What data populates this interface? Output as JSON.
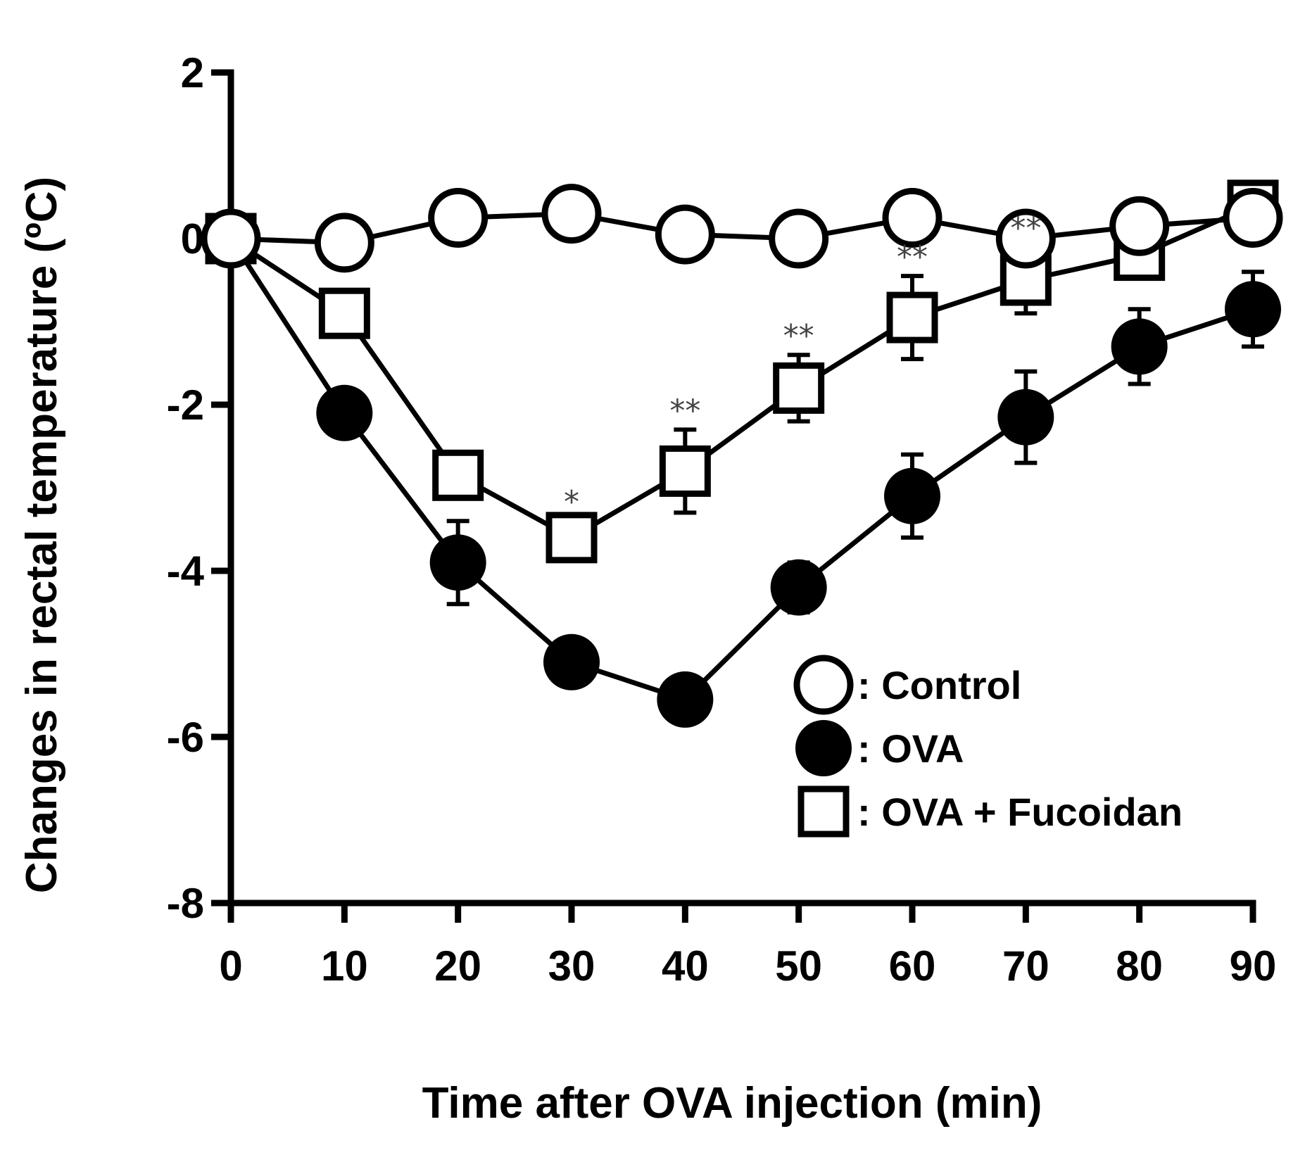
{
  "chart_data": {
    "type": "line",
    "title": "",
    "xlabel": "Time after OVA injection (min)",
    "ylabel": "Changes in rectal temperature (ºC)",
    "xlim": [
      0,
      90
    ],
    "ylim": [
      -8,
      2
    ],
    "xticks": [
      0,
      10,
      20,
      30,
      40,
      50,
      60,
      70,
      80,
      90
    ],
    "yticks": [
      2,
      0,
      -2,
      -4,
      -6,
      -8
    ],
    "x": [
      0,
      10,
      20,
      30,
      40,
      50,
      60,
      70,
      80,
      90
    ],
    "legend_position": "lower-right",
    "series": [
      {
        "name": "Control",
        "legend_label": ": Control",
        "marker": "open-circle",
        "values": [
          0,
          -0.05,
          0.25,
          0.3,
          0.05,
          0.0,
          0.25,
          0.0,
          0.15,
          0.25
        ],
        "errors": [
          0,
          0,
          0,
          0,
          0,
          0,
          0,
          0,
          0,
          0
        ]
      },
      {
        "name": "OVA",
        "legend_label": ": OVA",
        "marker": "filled-circle",
        "values": [
          0,
          -2.1,
          -3.9,
          -5.1,
          -5.55,
          -4.2,
          -3.1,
          -2.15,
          -1.3,
          -0.85
        ],
        "errors": [
          0,
          0.2,
          0.5,
          0.25,
          0.25,
          0.3,
          0.5,
          0.55,
          0.45,
          0.45
        ]
      },
      {
        "name": "OVA + Fucoidan",
        "legend_label": ": OVA + Fucoidan",
        "marker": "open-square",
        "values": [
          0,
          -0.9,
          -2.85,
          -3.6,
          -2.8,
          -1.8,
          -0.95,
          -0.5,
          -0.2,
          0.4
        ],
        "errors": [
          0,
          0.15,
          0.2,
          0.2,
          0.5,
          0.4,
          0.5,
          0.4,
          0.2,
          0.15
        ]
      }
    ],
    "annotations": [
      {
        "x": 30,
        "text": "*"
      },
      {
        "x": 40,
        "text": "**"
      },
      {
        "x": 50,
        "text": "**"
      },
      {
        "x": 60,
        "text": "**"
      },
      {
        "x": 70,
        "text": "**"
      }
    ]
  }
}
